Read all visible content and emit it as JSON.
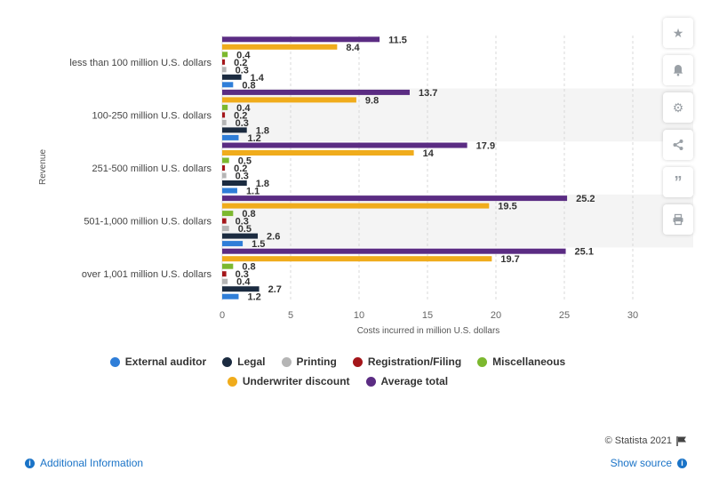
{
  "chart_data": {
    "type": "bar",
    "orientation": "horizontal",
    "title": "",
    "xlabel": "Costs incurred in million U.S. dollars",
    "ylabel": "Revenue",
    "xlim": [
      0,
      30
    ],
    "xticks": [
      0,
      5,
      10,
      15,
      20,
      25,
      30
    ],
    "grid": true,
    "legend_position": "bottom",
    "categories": [
      "less than 100 million U.S. dollars",
      "100-250 million U.S. dollars",
      "251-500 million U.S. dollars",
      "501-1,000 million U.S. dollars",
      "over 1,001 million U.S. dollars"
    ],
    "series": [
      {
        "name": "Average total",
        "color": "#5b2c83",
        "values": [
          11.5,
          13.7,
          17.9,
          25.2,
          25.1
        ]
      },
      {
        "name": "Underwriter discount",
        "color": "#f0ac1c",
        "values": [
          8.4,
          9.8,
          14,
          19.5,
          19.7
        ]
      },
      {
        "name": "Miscellaneous",
        "color": "#7cb82f",
        "values": [
          0.4,
          0.4,
          0.5,
          0.8,
          0.8
        ]
      },
      {
        "name": "Registration/Filing",
        "color": "#a4161a",
        "values": [
          0.2,
          0.2,
          0.2,
          0.3,
          0.3
        ]
      },
      {
        "name": "Printing",
        "color": "#b5b5b5",
        "values": [
          0.3,
          0.3,
          0.3,
          0.5,
          0.4
        ]
      },
      {
        "name": "Legal",
        "color": "#1b2b40",
        "values": [
          1.4,
          1.8,
          1.8,
          2.6,
          2.7
        ]
      },
      {
        "name": "External auditor",
        "color": "#2f7ed8",
        "values": [
          0.8,
          1.2,
          1.1,
          1.5,
          1.2
        ]
      }
    ],
    "legend_order": [
      [
        "External auditor",
        "Legal",
        "Printing",
        "Registration/Filing",
        "Miscellaneous"
      ],
      [
        "Underwriter discount",
        "Average total"
      ]
    ]
  },
  "footer": {
    "copyright": "© Statista 2021",
    "additional_info": "Additional Information",
    "show_source": "Show source"
  },
  "toolbar": {
    "icons": [
      "star-icon",
      "bell-icon",
      "gear-icon",
      "share-icon",
      "quote-icon",
      "print-icon"
    ]
  }
}
